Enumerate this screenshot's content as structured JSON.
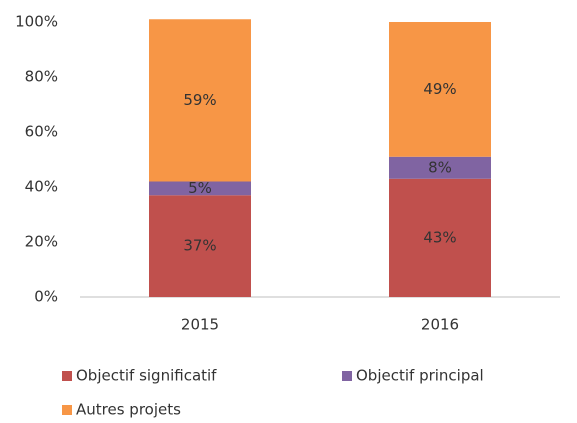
{
  "chart_data": {
    "type": "stacked_bar",
    "categories": [
      "2015",
      "2016"
    ],
    "series": [
      {
        "name": "Objectif significatif",
        "color": "#c0504d",
        "values": [
          37,
          43
        ],
        "value_labels": [
          "37%",
          "43%"
        ]
      },
      {
        "name": "Objectif principal",
        "color": "#8064a2",
        "values": [
          5,
          8
        ],
        "value_labels": [
          "5%",
          "8%"
        ]
      },
      {
        "name": "Autres projets",
        "color": "#f79646",
        "values": [
          59,
          49
        ],
        "value_labels": [
          "59%",
          "49%"
        ]
      }
    ],
    "ylim": [
      0,
      100
    ],
    "yticks": [
      {
        "value": 0,
        "label": "0%"
      },
      {
        "value": 20,
        "label": "20%"
      },
      {
        "value": 40,
        "label": "40%"
      },
      {
        "value": 60,
        "label": "60%"
      },
      {
        "value": 80,
        "label": "80%"
      },
      {
        "value": 100,
        "label": "100%"
      }
    ],
    "grid": false,
    "legend": "bottom"
  }
}
